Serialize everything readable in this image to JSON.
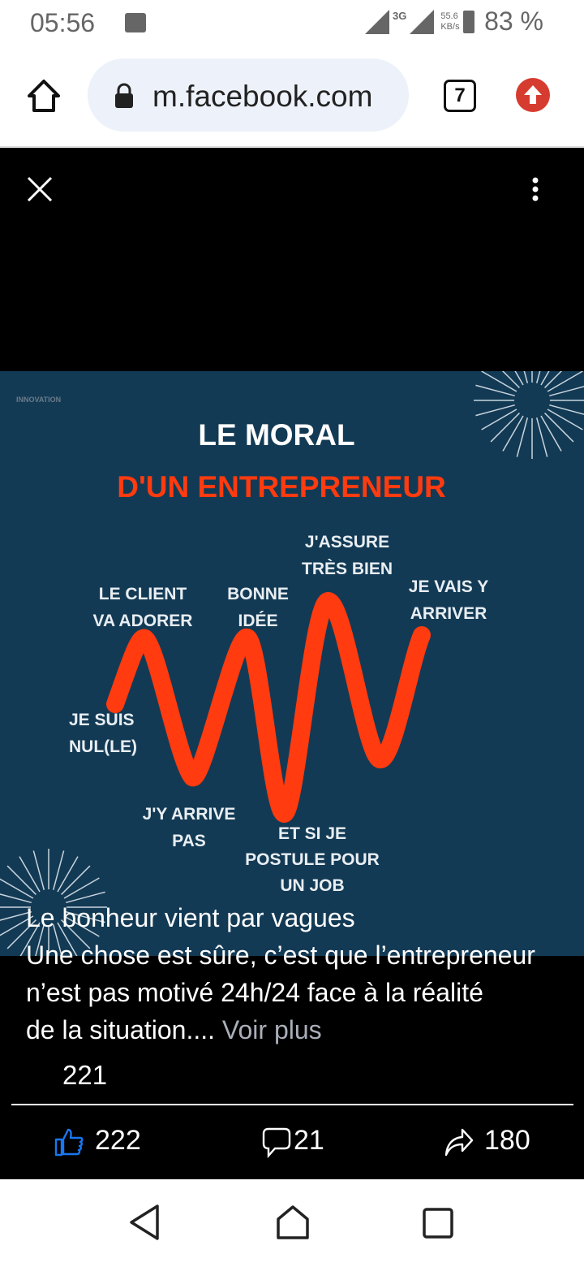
{
  "status_bar": {
    "time": "05:56",
    "network": "3G",
    "speed": "55.6",
    "speed_unit": "KB/s",
    "battery": "83 %"
  },
  "browser": {
    "url": "m.facebook.com",
    "tab_count": "7"
  },
  "post_image": {
    "brand": "INNOVATION",
    "title_line1": "LE MORAL",
    "title_line2": "D'UN ENTREPRENEUR",
    "accent_color": "#ff3b0f",
    "background_color": "#133a55",
    "labels": [
      [
        "LE CLIENT",
        "VA ADORER"
      ],
      [
        "BONNE",
        "IDÉE"
      ],
      [
        "J'ASSURE",
        "TRÈS BIEN"
      ],
      [
        "JE VAIS Y",
        "ARRIVER"
      ],
      [
        "JE SUIS",
        "NUL(LE)"
      ],
      [
        "J'Y ARRIVE",
        "PAS"
      ],
      [
        "ET SI JE",
        "POSTULE POUR",
        "UN JOB"
      ]
    ]
  },
  "caption": {
    "headline": "Le bonheur vient par vagues",
    "line1": "Une chose est sûre, c’est que l’entrepreneur",
    "line2": "n’est pas motivé 24h/24 face à la réalité",
    "line3": "de la situation....",
    "see_more": "Voir plus"
  },
  "reactions_count": "221",
  "actions": {
    "likes": "222",
    "comments": "21",
    "shares": "180"
  }
}
